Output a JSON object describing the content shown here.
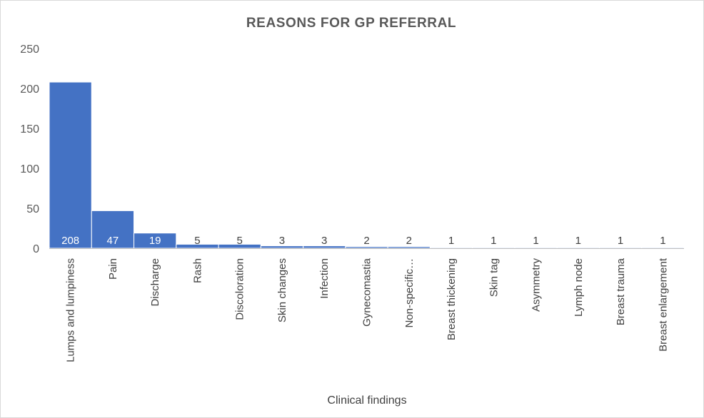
{
  "chart_data": {
    "type": "bar",
    "title": "REASONS FOR GP REFERRAL",
    "xlabel": "Clinical findings",
    "ylabel": "",
    "ylim": [
      0,
      250
    ],
    "yticks": [
      0,
      50,
      100,
      150,
      200,
      250
    ],
    "grid": false,
    "legend": "none",
    "bar_color": "#4472c4",
    "categories": [
      "Lumps and lumpiness",
      "Pain",
      "Discharge",
      "Rash",
      "Discoloration",
      "Skin changes",
      "Infection",
      "Gynecomastia",
      "Non-specific…",
      "Breast thickening",
      "Skin tag",
      "Asymmetry",
      "Lymph node",
      "Breast trauma",
      "Breast enlargement"
    ],
    "values": [
      208,
      47,
      19,
      5,
      5,
      3,
      3,
      2,
      2,
      1,
      1,
      1,
      1,
      1,
      1
    ]
  }
}
